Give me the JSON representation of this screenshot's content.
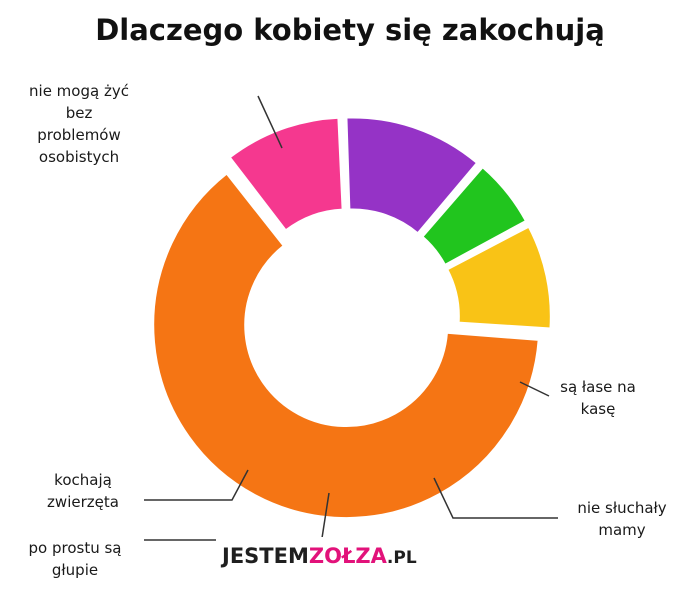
{
  "chart_data": {
    "type": "pie",
    "title": "Dlaczego kobiety się zakochują",
    "slices": [
      {
        "label": "nie mogą żyć bez problemów osobistych",
        "label_lines": [
          "nie mogą żyć",
          "bez",
          "problemów",
          "osobistych"
        ],
        "value": 64,
        "color": "#f57514"
      },
      {
        "label": "są łase na kasę",
        "label_lines": [
          "są łase na",
          "kasę"
        ],
        "value": 10,
        "color": "#f5388f"
      },
      {
        "label": "nie słuchały mamy",
        "label_lines": [
          "nie słuchały",
          "mamy"
        ],
        "value": 12,
        "color": "#9533c6"
      },
      {
        "label": "po prostu są głupie",
        "label_lines": [
          "po prostu są",
          "głupie"
        ],
        "value": 6,
        "color": "#21c51e"
      },
      {
        "label": "kochają zwierzęta",
        "label_lines": [
          "kochają",
          "zwierzęta"
        ],
        "value": 9,
        "color": "#f9c316"
      }
    ]
  },
  "watermark": {
    "prefix": "JESTEM",
    "accent": "ZOŁZA",
    "suffix": ".PL"
  }
}
